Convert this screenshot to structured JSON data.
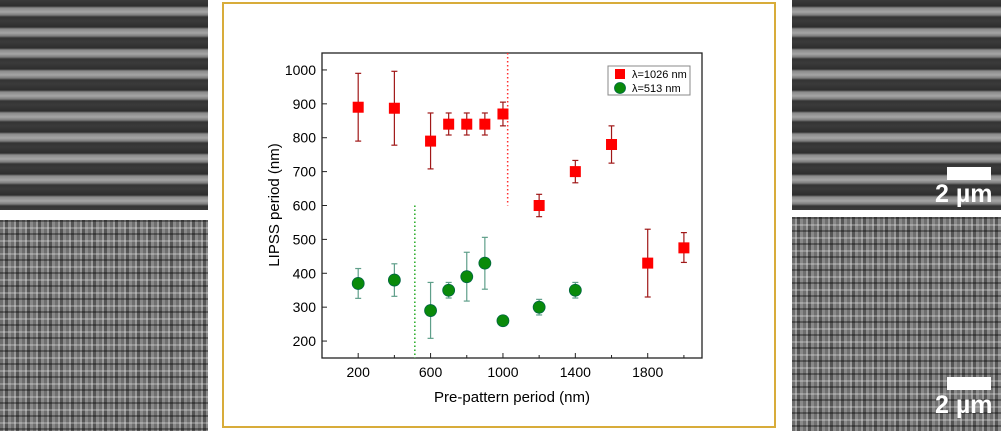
{
  "images": {
    "scale_bar_label": "2 µm"
  },
  "chart_data": {
    "type": "scatter",
    "xlabel": "Pre-pattern period (nm)",
    "ylabel": "LIPSS period (nm)",
    "xlim": [
      0,
      2100
    ],
    "ylim": [
      150,
      1050
    ],
    "xticks": [
      200,
      600,
      1000,
      1400,
      1800
    ],
    "xticks_minor": [
      400,
      800,
      1200,
      1600,
      2000
    ],
    "yticks": [
      200,
      300,
      400,
      500,
      600,
      700,
      800,
      900,
      1000
    ],
    "grid": false,
    "legend_placement": "top-right",
    "series": [
      {
        "name": "λ=1026 nm",
        "marker": "square",
        "color": "#ff0000",
        "errcolor": "#a01818",
        "points": [
          {
            "x": 200,
            "y": 890,
            "lo": 790,
            "hi": 990
          },
          {
            "x": 400,
            "y": 887,
            "lo": 778,
            "hi": 996
          },
          {
            "x": 600,
            "y": 790,
            "lo": 708,
            "hi": 873
          },
          {
            "x": 700,
            "y": 840,
            "lo": 808,
            "hi": 873
          },
          {
            "x": 800,
            "y": 840,
            "lo": 808,
            "hi": 873
          },
          {
            "x": 900,
            "y": 840,
            "lo": 808,
            "hi": 873
          },
          {
            "x": 1000,
            "y": 870,
            "lo": 835,
            "hi": 905
          },
          {
            "x": 1200,
            "y": 600,
            "lo": 567,
            "hi": 633
          },
          {
            "x": 1400,
            "y": 700,
            "lo": 667,
            "hi": 733
          },
          {
            "x": 1600,
            "y": 780,
            "lo": 725,
            "hi": 835
          },
          {
            "x": 1800,
            "y": 430,
            "lo": 330,
            "hi": 530
          },
          {
            "x": 2000,
            "y": 475,
            "lo": 432,
            "hi": 520
          }
        ]
      },
      {
        "name": "λ=513 nm",
        "marker": "circle",
        "color": "#0a8a0a",
        "errcolor": "#5f9f8a",
        "points": [
          {
            "x": 200,
            "y": 370,
            "lo": 326,
            "hi": 414
          },
          {
            "x": 400,
            "y": 380,
            "lo": 332,
            "hi": 428
          },
          {
            "x": 600,
            "y": 290,
            "lo": 208,
            "hi": 373
          },
          {
            "x": 700,
            "y": 350,
            "lo": 327,
            "hi": 373
          },
          {
            "x": 800,
            "y": 390,
            "lo": 318,
            "hi": 462
          },
          {
            "x": 900,
            "y": 430,
            "lo": 353,
            "hi": 506
          },
          {
            "x": 1000,
            "y": 260,
            "lo": 260,
            "hi": 260
          },
          {
            "x": 1200,
            "y": 300,
            "lo": 277,
            "hi": 323
          },
          {
            "x": 1400,
            "y": 350,
            "lo": 327,
            "hi": 373
          }
        ]
      }
    ],
    "reference_lines": [
      {
        "x": 1026,
        "y_from": 600,
        "y_to": 1050,
        "color": "#ff3030",
        "style": "dotted"
      },
      {
        "x": 513,
        "y_from": 150,
        "y_to": 600,
        "color": "#22aa22",
        "style": "dotted"
      }
    ]
  }
}
